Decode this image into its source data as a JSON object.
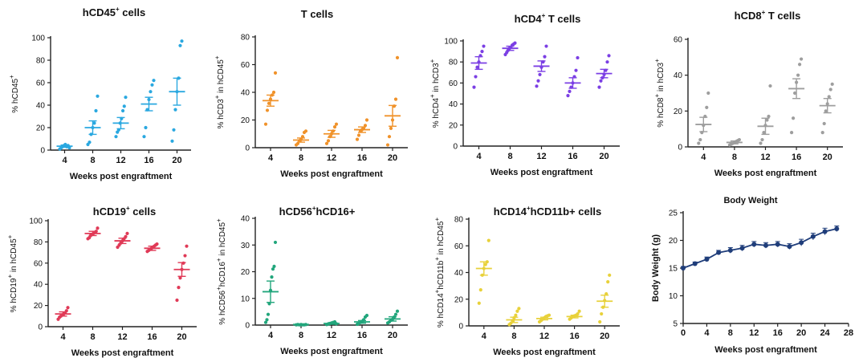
{
  "chart_data": [
    {
      "id": "p0",
      "type": "scatter",
      "title": "hCD45",
      "title_sup": "+",
      "title_after": " cells",
      "ylabel_parts": [
        "% hCD45",
        "+",
        ""
      ],
      "xlabel": "Weeks post engraftment",
      "categories": [
        "4",
        "8",
        "12",
        "16",
        "20"
      ],
      "ylim": [
        0,
        100
      ],
      "yticks": [
        "0",
        "20",
        "40",
        "60",
        "80",
        "100"
      ],
      "color": "#2aa8e0",
      "series": [
        {
          "points": [
            1,
            2,
            3,
            4,
            5,
            3,
            4,
            2
          ],
          "mean": 3.5,
          "sem": 1
        },
        {
          "points": [
            5,
            7,
            14,
            20,
            24,
            35,
            48
          ],
          "mean": 20,
          "sem": 6
        },
        {
          "points": [
            12,
            16,
            18,
            24,
            28,
            35,
            39,
            47
          ],
          "mean": 24,
          "sem": 5
        },
        {
          "points": [
            12,
            20,
            36,
            45,
            52,
            58,
            62
          ],
          "mean": 41,
          "sem": 6
        },
        {
          "points": [
            8,
            18,
            36,
            52,
            64,
            93,
            97
          ],
          "mean": 52,
          "sem": 12
        }
      ]
    },
    {
      "id": "p1",
      "type": "scatter",
      "title": "T cells",
      "title_sup": "",
      "title_after": "",
      "ylabel_parts": [
        "% hCD3",
        "+",
        " in hCD45",
        "+"
      ],
      "xlabel": "Weeks post engraftment",
      "categories": [
        "4",
        "8",
        "12",
        "16",
        "20"
      ],
      "ylim": [
        0,
        80
      ],
      "yticks": [
        "0",
        "20",
        "40",
        "60",
        "80"
      ],
      "color": "#f0922a",
      "series": [
        {
          "points": [
            17,
            27,
            32,
            35,
            38,
            40,
            54
          ],
          "mean": 34,
          "sem": 4
        },
        {
          "points": [
            2,
            3,
            5,
            6,
            8,
            11,
            12
          ],
          "mean": 5.5,
          "sem": 1.5
        },
        {
          "points": [
            3,
            5,
            8,
            10,
            12,
            15,
            17
          ],
          "mean": 10,
          "sem": 2.5
        },
        {
          "points": [
            6,
            9,
            12,
            13,
            14,
            16,
            20
          ],
          "mean": 13,
          "sem": 2
        },
        {
          "points": [
            2,
            8,
            14,
            20,
            30,
            35,
            65
          ],
          "mean": 23,
          "sem": 7.5
        }
      ]
    },
    {
      "id": "p2",
      "type": "scatter",
      "title": "hCD4",
      "title_sup": "+",
      "title_after": " T cells",
      "ylabel_parts": [
        "% hCD4",
        "+",
        " in hCD3",
        "+"
      ],
      "xlabel": "Weeks post engraftment",
      "categories": [
        "4",
        "8",
        "12",
        "16",
        "20"
      ],
      "ylim": [
        0,
        100
      ],
      "yticks": [
        "0",
        "20",
        "40",
        "60",
        "80",
        "100"
      ],
      "color": "#7b3fe4",
      "series": [
        {
          "points": [
            56,
            66,
            75,
            80,
            86,
            90,
            95
          ],
          "mean": 79,
          "sem": 6
        },
        {
          "points": [
            87,
            89,
            91,
            93,
            94,
            96,
            97,
            98
          ],
          "mean": 93,
          "sem": 2
        },
        {
          "points": [
            57,
            62,
            68,
            75,
            80,
            85,
            95
          ],
          "mean": 76,
          "sem": 5
        },
        {
          "points": [
            48,
            52,
            56,
            60,
            66,
            72,
            84
          ],
          "mean": 60,
          "sem": 5
        },
        {
          "points": [
            56,
            62,
            65,
            68,
            72,
            80,
            86
          ],
          "mean": 69,
          "sem": 4
        }
      ]
    },
    {
      "id": "p3",
      "type": "scatter",
      "title": "hCD8",
      "title_sup": "+",
      "title_after": " T cells",
      "ylabel_parts": [
        "% hCD8",
        "+",
        " in hCD3",
        "+"
      ],
      "xlabel": "Weeks post engraftment",
      "categories": [
        "4",
        "8",
        "12",
        "16",
        "20"
      ],
      "ylim": [
        0,
        60
      ],
      "yticks": [
        "0",
        "20",
        "40",
        "60"
      ],
      "color": "#9e9e9e",
      "series": [
        {
          "points": [
            2,
            4,
            8,
            12,
            17,
            22,
            30
          ],
          "mean": 12.5,
          "sem": 4
        },
        {
          "points": [
            1,
            1.5,
            2,
            2.5,
            3,
            3.5,
            4
          ],
          "mean": 2.5,
          "sem": 0.8
        },
        {
          "points": [
            2,
            4,
            8,
            12,
            15,
            17,
            34
          ],
          "mean": 11.5,
          "sem": 4.5
        },
        {
          "points": [
            8,
            16,
            30,
            36,
            40,
            46,
            49
          ],
          "mean": 32.5,
          "sem": 5.5
        },
        {
          "points": [
            8,
            13,
            20,
            24,
            28,
            32,
            35
          ],
          "mean": 23,
          "sem": 4
        }
      ]
    },
    {
      "id": "p4",
      "type": "scatter",
      "title": "hCD19",
      "title_sup": "+",
      "title_after": " cells",
      "ylabel_parts": [
        "% hCD19",
        "+",
        " in hCD45",
        "+"
      ],
      "xlabel": "Weeks post engraftment",
      "categories": [
        "4",
        "8",
        "12",
        "16",
        "20"
      ],
      "ylim": [
        0,
        100
      ],
      "yticks": [
        "0",
        "20",
        "40",
        "60",
        "80",
        "100"
      ],
      "color": "#e03a57",
      "series": [
        {
          "points": [
            7,
            9,
            10,
            11,
            12,
            13,
            15,
            18
          ],
          "mean": 12,
          "sem": 2
        },
        {
          "points": [
            83,
            84,
            86,
            87,
            88,
            89,
            90,
            93
          ],
          "mean": 88,
          "sem": 2
        },
        {
          "points": [
            75,
            77,
            79,
            81,
            83,
            85,
            88
          ],
          "mean": 81,
          "sem": 2.5
        },
        {
          "points": [
            71,
            72,
            73,
            74,
            75,
            76,
            77,
            78
          ],
          "mean": 74,
          "sem": 2
        },
        {
          "points": [
            25,
            37,
            46,
            54,
            60,
            67,
            76
          ],
          "mean": 54,
          "sem": 6.5
        }
      ]
    },
    {
      "id": "p5",
      "type": "scatter",
      "title": "hCD56",
      "title_sup": "+",
      "title_after": "hCD16+",
      "ylabel_parts": [
        "% hCD56",
        "+",
        "hCD16",
        "+",
        " in hCD45",
        "+"
      ],
      "xlabel": "Weeks post engraftment",
      "categories": [
        "4",
        "8",
        "12",
        "16",
        "20"
      ],
      "ylim": [
        0,
        40
      ],
      "yticks": [
        "0",
        "10",
        "20",
        "30",
        "40"
      ],
      "color": "#22a67c",
      "series": [
        {
          "points": [
            1,
            2,
            4,
            8,
            13,
            18,
            21,
            22,
            31
          ],
          "mean": 12.5,
          "sem": 4
        },
        {
          "points": [
            0.1,
            0.2,
            0.1,
            0.2,
            0.1,
            0.1,
            0.2
          ],
          "mean": 0.2,
          "sem": 0.1
        },
        {
          "points": [
            0.2,
            0.4,
            0.6,
            0.8,
            1.0,
            1.2,
            0.5
          ],
          "mean": 0.6,
          "sem": 0.3
        },
        {
          "points": [
            0.3,
            0.6,
            1.0,
            1.4,
            2.0,
            3.0,
            3.6
          ],
          "mean": 1.2,
          "sem": 0.5
        },
        {
          "points": [
            0.8,
            1.2,
            1.8,
            2.2,
            3.0,
            4.0,
            5.2
          ],
          "mean": 2.3,
          "sem": 0.8
        }
      ]
    },
    {
      "id": "p6",
      "type": "scatter",
      "title": "hCD14",
      "title_sup": "+",
      "title_after": "hCD11b+ cells",
      "ylabel_parts": [
        "% hCD14",
        "+",
        "hCD11b",
        "+",
        " in hCD45",
        "+"
      ],
      "xlabel": "Weeks post engraftment",
      "categories": [
        "4",
        "8",
        "12",
        "16",
        "20"
      ],
      "ylim": [
        0,
        80
      ],
      "yticks": [
        "0",
        "20",
        "40",
        "60",
        "80"
      ],
      "color": "#e8d13a",
      "series": [
        {
          "points": [
            17,
            27,
            38,
            43,
            46,
            48,
            64
          ],
          "mean": 43,
          "sem": 5
        },
        {
          "points": [
            1,
            2,
            4,
            6,
            8,
            11,
            13
          ],
          "mean": 4.5,
          "sem": 2
        },
        {
          "points": [
            3,
            4,
            5,
            6,
            7,
            7.5,
            8
          ],
          "mean": 5.5,
          "sem": 1
        },
        {
          "points": [
            5,
            6,
            7,
            7.5,
            8,
            9,
            11
          ],
          "mean": 7,
          "sem": 1
        },
        {
          "points": [
            3,
            9,
            14,
            19,
            24,
            33,
            38
          ],
          "mean": 18.5,
          "sem": 4.5
        }
      ]
    },
    {
      "id": "p7",
      "type": "line",
      "title": "Body Weight",
      "ylabel": "Body Weight (g)",
      "xlabel": "Weeks post engraftment",
      "xlim": [
        0,
        28
      ],
      "xticks": [
        "0",
        "4",
        "8",
        "12",
        "16",
        "20",
        "24",
        "28"
      ],
      "ylim": [
        5,
        25
      ],
      "yticks": [
        "5",
        "10",
        "15",
        "20",
        "25"
      ],
      "color": "#1f3d7a",
      "x": [
        0,
        2,
        4,
        6,
        8,
        10,
        12,
        14,
        16,
        18,
        20,
        22,
        24,
        26
      ],
      "y": [
        15.0,
        15.8,
        16.6,
        17.8,
        18.2,
        18.6,
        19.3,
        19.1,
        19.3,
        18.9,
        19.6,
        20.7,
        21.6,
        22.1
      ],
      "err": [
        0.3,
        0.3,
        0.4,
        0.4,
        0.5,
        0.5,
        0.5,
        0.5,
        0.5,
        0.5,
        0.6,
        0.6,
        0.6,
        0.5
      ]
    }
  ]
}
